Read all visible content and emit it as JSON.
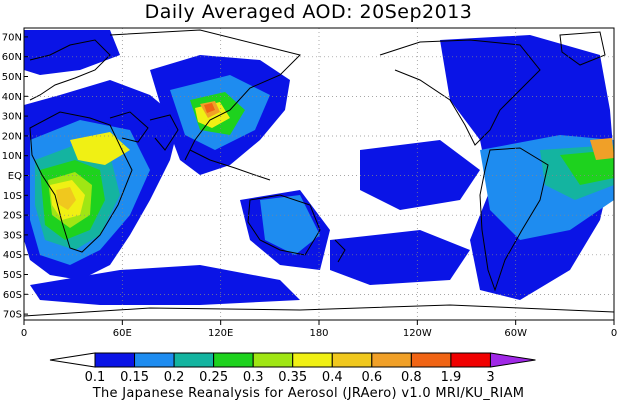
{
  "title": "Daily Averaged AOD: 20Sep2013",
  "footer": "The Japanese Reanalysis for Aerosol (JRAero) v1.0 MRI/KU_RIAM",
  "lat_labels": [
    "70N",
    "60N",
    "50N",
    "40N",
    "30N",
    "20N",
    "10N",
    "EQ",
    "10S",
    "20S",
    "30S",
    "40S",
    "50S",
    "60S",
    "70S"
  ],
  "lon_labels": [
    "0",
    "60E",
    "120E",
    "180",
    "120W",
    "60W",
    "0"
  ],
  "colorbar": {
    "labels": [
      "0.1",
      "0.15",
      "0.2",
      "0.25",
      "0.3",
      "0.35",
      "0.4",
      "0.6",
      "0.8",
      "1.9",
      "3"
    ],
    "colors": [
      "#ffffff",
      "#0a14e6",
      "#1e8cf0",
      "#14b4a0",
      "#1ed21e",
      "#a0e614",
      "#f0f014",
      "#f0c81e",
      "#f0a028",
      "#f06414",
      "#f00000",
      "#a028e6"
    ]
  }
}
